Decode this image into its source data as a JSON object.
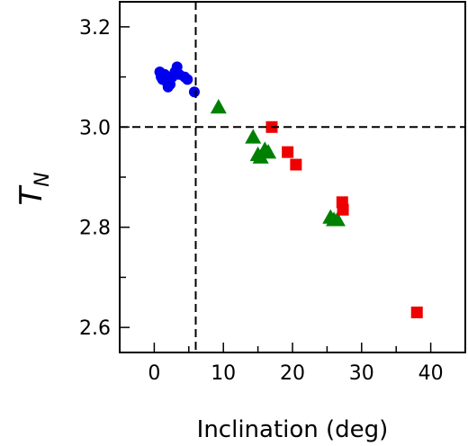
{
  "chart_data": {
    "type": "scatter",
    "xlabel": "Inclination (deg)",
    "ylabel_main": "T",
    "ylabel_sub": "N",
    "xlim": [
      -5,
      45
    ],
    "ylim": [
      2.55,
      3.25
    ],
    "xticks": [
      0,
      10,
      20,
      30,
      40
    ],
    "xtick_labels": [
      "0",
      "10",
      "20",
      "30",
      "40"
    ],
    "yticks": [
      2.6,
      2.8,
      3.0,
      3.2
    ],
    "ytick_labels": [
      "2.6",
      "2.8",
      "3.0",
      "3.2"
    ],
    "reference_lines": {
      "x": 6,
      "y": 3.0
    },
    "grid": false,
    "series": [
      {
        "marker": "circle",
        "color": "#0000ee",
        "points": [
          [
            0.8,
            3.11
          ],
          [
            1.0,
            3.1
          ],
          [
            1.2,
            3.095
          ],
          [
            1.5,
            3.105
          ],
          [
            1.8,
            3.09
          ],
          [
            2.0,
            3.08
          ],
          [
            2.3,
            3.085
          ],
          [
            2.6,
            3.1
          ],
          [
            3.0,
            3.11
          ],
          [
            3.3,
            3.12
          ],
          [
            3.6,
            3.105
          ],
          [
            4.4,
            3.1
          ],
          [
            4.8,
            3.095
          ],
          [
            5.8,
            3.07
          ]
        ]
      },
      {
        "marker": "triangle",
        "color": "#008000",
        "points": [
          [
            9.3,
            3.04
          ],
          [
            14.3,
            2.98
          ],
          [
            15.0,
            2.945
          ],
          [
            15.4,
            2.94
          ],
          [
            16.0,
            2.955
          ],
          [
            16.5,
            2.95
          ],
          [
            25.5,
            2.82
          ],
          [
            26.0,
            2.815
          ],
          [
            26.5,
            2.815
          ]
        ]
      },
      {
        "marker": "square",
        "color": "#ee0000",
        "points": [
          [
            17.0,
            3.0
          ],
          [
            19.3,
            2.95
          ],
          [
            20.5,
            2.925
          ],
          [
            27.2,
            2.85
          ],
          [
            27.3,
            2.835
          ],
          [
            38.0,
            2.63
          ]
        ]
      }
    ]
  }
}
